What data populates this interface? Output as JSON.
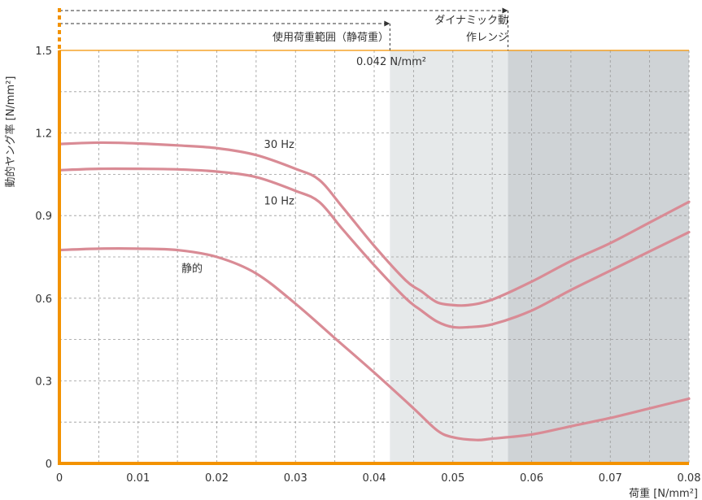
{
  "chart_data": {
    "type": "line",
    "title": "",
    "xlabel": "荷重 [N/mm²]",
    "ylabel": "動的ヤング率 [N/mm²]",
    "xlim": [
      0,
      0.08
    ],
    "ylim": [
      0,
      1.5
    ],
    "xticks": [
      "0",
      "0.01",
      "0.02",
      "0.03",
      "0.04",
      "0.05",
      "0.06",
      "0.07",
      "0.08"
    ],
    "yticks": [
      "0",
      "0.3",
      "0.6",
      "0.9",
      "1.2",
      "1.5"
    ],
    "grid": true,
    "colors": {
      "axis": "#f39200",
      "curve": "#d98b95",
      "static_range": "#e6e9ea",
      "dynamic_range": "#cfd3d6",
      "grid": "#9a9a9a"
    },
    "regions": [
      {
        "label": "使用荷重範囲（静荷重）",
        "x_start": 0,
        "x_end": 0.042
      },
      {
        "label_lines": [
          "ダイナミック動",
          "作レンジ"
        ],
        "x_start": 0,
        "x_end": 0.057
      }
    ],
    "annotation": "0.042 N/mm²",
    "series": [
      {
        "name": "30 Hz",
        "x": [
          0,
          0.005,
          0.01,
          0.015,
          0.02,
          0.025,
          0.03,
          0.033,
          0.036,
          0.04,
          0.044,
          0.046,
          0.048,
          0.05,
          0.052,
          0.055,
          0.06,
          0.065,
          0.07,
          0.075,
          0.08
        ],
        "y": [
          1.16,
          1.165,
          1.162,
          1.155,
          1.145,
          1.12,
          1.07,
          1.03,
          0.93,
          0.79,
          0.665,
          0.625,
          0.585,
          0.575,
          0.575,
          0.595,
          0.66,
          0.735,
          0.8,
          0.875,
          0.95
        ]
      },
      {
        "name": "10 Hz",
        "x": [
          0,
          0.005,
          0.01,
          0.015,
          0.02,
          0.025,
          0.03,
          0.033,
          0.036,
          0.04,
          0.044,
          0.046,
          0.048,
          0.05,
          0.052,
          0.055,
          0.06,
          0.065,
          0.07,
          0.075,
          0.08
        ],
        "y": [
          1.065,
          1.07,
          1.07,
          1.068,
          1.06,
          1.04,
          0.99,
          0.95,
          0.85,
          0.72,
          0.6,
          0.555,
          0.515,
          0.495,
          0.495,
          0.505,
          0.555,
          0.63,
          0.7,
          0.77,
          0.84
        ]
      },
      {
        "name": "静的",
        "x": [
          0,
          0.005,
          0.01,
          0.015,
          0.02,
          0.025,
          0.03,
          0.035,
          0.04,
          0.045,
          0.048,
          0.05,
          0.053,
          0.055,
          0.06,
          0.065,
          0.07,
          0.075,
          0.08
        ],
        "y": [
          0.775,
          0.78,
          0.78,
          0.775,
          0.75,
          0.69,
          0.58,
          0.455,
          0.33,
          0.2,
          0.12,
          0.095,
          0.085,
          0.09,
          0.105,
          0.135,
          0.165,
          0.2,
          0.235
        ]
      }
    ],
    "series_labels": [
      {
        "text": "30 Hz",
        "x": 0.026,
        "y": 1.145
      },
      {
        "text": "10 Hz",
        "x": 0.026,
        "y": 0.94
      },
      {
        "text": "静的",
        "x": 0.0155,
        "y": 0.695
      }
    ]
  }
}
